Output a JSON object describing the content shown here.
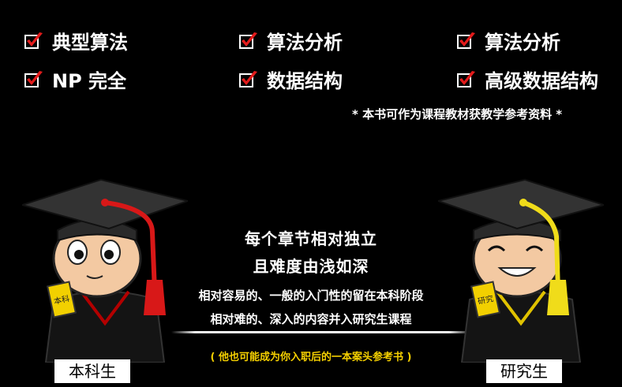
{
  "features": {
    "col1": [
      "典型算法",
      "NP 完全"
    ],
    "col2": [
      "算法分析",
      "数据结构"
    ],
    "col3": [
      "算法分析",
      "高级数据结构"
    ]
  },
  "note": "* 本书可作为课程教材获教学参考资料 *",
  "center": {
    "title1": "每个章节相对独立",
    "title2": "且难度由浅如深",
    "desc1": "相对容易的、一般的入门性的留在本科阶段",
    "desc2": "相对难的、深入的内容并入研究生课程",
    "footnote": "( 他也可能成为你入职后的一本案头参考书 )"
  },
  "characters": {
    "left": {
      "label": "本科生",
      "book_text": "本科",
      "tassel_color": "#d81818"
    },
    "right": {
      "label": "研究生",
      "book_text": "研究",
      "tassel_color": "#f0dc1a"
    }
  },
  "colors": {
    "check": "#e31b1b",
    "footnote": "#f5d000"
  },
  "icons": [
    "check-icon"
  ]
}
